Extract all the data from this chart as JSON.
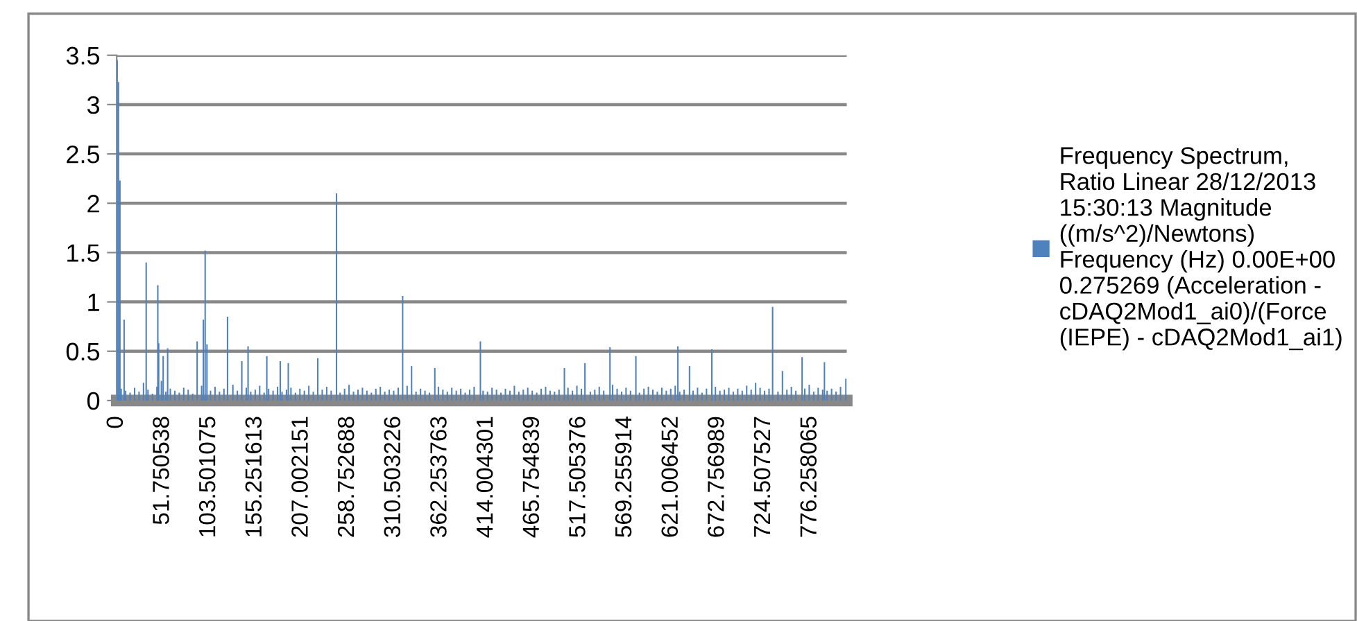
{
  "chart_data": {
    "type": "bar",
    "series": [
      {
        "name": "Frequency Spectrum,\nRatio Linear 28/12/2013\n15:30:13 Magnitude\n((m/s^2)/Newtons)\nFrequency (Hz) 0.00E+00\n0.275269 (Acceleration -\ncDAQ2Mod1_ai0)/(Force\n(IEPE) - cDAQ2Mod1_ai1)",
        "color": "#4f81bd",
        "x": [
          0.5,
          2,
          3.6,
          5,
          8.3,
          10,
          15,
          20,
          25,
          30,
          33,
          35,
          40,
          45,
          46,
          47,
          50,
          52,
          55,
          57,
          60,
          65,
          70,
          75,
          80,
          85,
          90,
          95,
          97,
          99,
          101,
          105,
          110,
          115,
          120,
          124,
          130,
          135,
          140,
          145,
          147,
          150,
          155,
          160,
          165,
          168,
          170,
          175,
          180,
          183,
          185,
          190,
          192,
          195,
          200,
          205,
          210,
          215,
          220,
          225,
          230,
          235,
          240,
          246,
          250,
          255,
          260,
          265,
          270,
          275,
          280,
          285,
          290,
          295,
          300,
          305,
          310,
          315,
          320,
          325,
          330,
          335,
          340,
          345,
          350,
          356,
          360,
          365,
          370,
          375,
          380,
          385,
          390,
          395,
          400,
          407,
          410,
          415,
          420,
          425,
          430,
          435,
          440,
          445,
          450,
          455,
          460,
          465,
          470,
          475,
          480,
          485,
          490,
          495,
          501,
          505,
          510,
          515,
          520,
          524,
          530,
          535,
          540,
          545,
          552,
          555,
          560,
          565,
          570,
          575,
          581,
          585,
          590,
          595,
          600,
          605,
          610,
          615,
          620,
          625,
          628,
          630,
          635,
          641,
          645,
          650,
          655,
          660,
          666,
          670,
          675,
          680,
          685,
          690,
          695,
          700,
          705,
          710,
          715,
          720,
          725,
          730,
          734,
          740,
          745,
          750,
          755,
          760,
          767,
          770,
          775,
          780,
          785,
          790,
          792,
          795,
          800,
          805,
          810,
          816
        ],
        "values": [
          3.45,
          3.23,
          2.23,
          0.12,
          0.82,
          0.1,
          0.08,
          0.13,
          0.09,
          0.18,
          1.4,
          0.11,
          0.07,
          0.14,
          1.17,
          0.58,
          0.2,
          0.45,
          0.09,
          0.53,
          0.12,
          0.1,
          0.08,
          0.13,
          0.11,
          0.07,
          0.6,
          0.15,
          0.82,
          1.52,
          0.57,
          0.1,
          0.14,
          0.09,
          0.12,
          0.85,
          0.16,
          0.1,
          0.4,
          0.13,
          0.55,
          0.09,
          0.11,
          0.15,
          0.08,
          0.45,
          0.12,
          0.1,
          0.14,
          0.4,
          0.09,
          0.11,
          0.38,
          0.13,
          0.08,
          0.12,
          0.1,
          0.15,
          0.09,
          0.43,
          0.11,
          0.14,
          0.1,
          2.1,
          0.08,
          0.12,
          0.16,
          0.09,
          0.11,
          0.13,
          0.1,
          0.08,
          0.12,
          0.14,
          0.09,
          0.11,
          0.1,
          0.13,
          1.06,
          0.15,
          0.35,
          0.09,
          0.12,
          0.1,
          0.08,
          0.33,
          0.14,
          0.11,
          0.09,
          0.13,
          0.1,
          0.12,
          0.08,
          0.11,
          0.14,
          0.6,
          0.1,
          0.09,
          0.13,
          0.11,
          0.08,
          0.12,
          0.1,
          0.15,
          0.09,
          0.11,
          0.13,
          0.1,
          0.08,
          0.12,
          0.14,
          0.1,
          0.09,
          0.11,
          0.33,
          0.13,
          0.1,
          0.15,
          0.12,
          0.38,
          0.09,
          0.11,
          0.14,
          0.1,
          0.54,
          0.16,
          0.12,
          0.09,
          0.13,
          0.1,
          0.45,
          0.08,
          0.12,
          0.14,
          0.11,
          0.09,
          0.13,
          0.1,
          0.12,
          0.15,
          0.55,
          0.09,
          0.11,
          0.35,
          0.1,
          0.13,
          0.08,
          0.12,
          0.52,
          0.14,
          0.1,
          0.11,
          0.13,
          0.09,
          0.12,
          0.1,
          0.15,
          0.11,
          0.18,
          0.13,
          0.1,
          0.12,
          0.95,
          0.09,
          0.3,
          0.11,
          0.14,
          0.1,
          0.44,
          0.12,
          0.16,
          0.09,
          0.13,
          0.11,
          0.39,
          0.1,
          0.12,
          0.09,
          0.14,
          0.22
        ]
      }
    ],
    "xlim": [
      0,
      817
    ],
    "xticks": [
      0,
      51.750538,
      103.501075,
      155.251613,
      207.002151,
      258.752688,
      310.503226,
      362.253763,
      414.004301,
      465.754839,
      517.505376,
      569.255914,
      621.006452,
      672.756989,
      724.507527,
      776.258065
    ],
    "ylim": [
      0,
      3.5
    ],
    "yticks": [
      0,
      0.5,
      1,
      1.5,
      2,
      2.5,
      3,
      3.5
    ],
    "grid": "y",
    "legend": "right"
  }
}
